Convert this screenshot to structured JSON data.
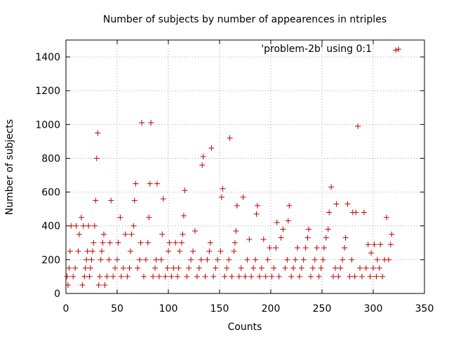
{
  "chart_data": {
    "type": "scatter",
    "title": "Number of subjects by number of appearences in ntriples",
    "xlabel": "Counts",
    "ylabel": "Number of subjects",
    "xlim": [
      0,
      350
    ],
    "ylim": [
      0,
      1500
    ],
    "xticks": [
      0,
      50,
      100,
      150,
      200,
      250,
      300,
      350
    ],
    "yticks": [
      0,
      200,
      400,
      600,
      800,
      1000,
      1200,
      1400
    ],
    "grid": true,
    "legend_position": "top-right",
    "marker_color": "#c00000",
    "series": [
      {
        "name": "'problem-2b' using 0:1",
        "marker": "plus",
        "points": [
          [
            1,
            100
          ],
          [
            2,
            50
          ],
          [
            3,
            150
          ],
          [
            4,
            250
          ],
          [
            5,
            400
          ],
          [
            7,
            100
          ],
          [
            9,
            150
          ],
          [
            10,
            400
          ],
          [
            12,
            250
          ],
          [
            13,
            350
          ],
          [
            15,
            450
          ],
          [
            16,
            50
          ],
          [
            17,
            400
          ],
          [
            18,
            100
          ],
          [
            19,
            150
          ],
          [
            20,
            200
          ],
          [
            21,
            250
          ],
          [
            22,
            400
          ],
          [
            23,
            100
          ],
          [
            24,
            150
          ],
          [
            25,
            200
          ],
          [
            26,
            250
          ],
          [
            27,
            300
          ],
          [
            28,
            400
          ],
          [
            29,
            550
          ],
          [
            30,
            800
          ],
          [
            31,
            950
          ],
          [
            32,
            50
          ],
          [
            33,
            100
          ],
          [
            34,
            200
          ],
          [
            35,
            250
          ],
          [
            36,
            300
          ],
          [
            37,
            350
          ],
          [
            38,
            50
          ],
          [
            40,
            100
          ],
          [
            42,
            200
          ],
          [
            43,
            300
          ],
          [
            44,
            550
          ],
          [
            46,
            100
          ],
          [
            48,
            150
          ],
          [
            50,
            200
          ],
          [
            51,
            300
          ],
          [
            53,
            450
          ],
          [
            54,
            100
          ],
          [
            56,
            150
          ],
          [
            58,
            350
          ],
          [
            60,
            100
          ],
          [
            62,
            150
          ],
          [
            63,
            250
          ],
          [
            64,
            350
          ],
          [
            66,
            400
          ],
          [
            67,
            550
          ],
          [
            68,
            650
          ],
          [
            70,
            150
          ],
          [
            72,
            200
          ],
          [
            73,
            300
          ],
          [
            74,
            1010
          ],
          [
            76,
            100
          ],
          [
            78,
            200
          ],
          [
            80,
            300
          ],
          [
            81,
            450
          ],
          [
            82,
            650
          ],
          [
            83,
            1010
          ],
          [
            85,
            100
          ],
          [
            87,
            150
          ],
          [
            88,
            200
          ],
          [
            89,
            650
          ],
          [
            91,
            100
          ],
          [
            93,
            200
          ],
          [
            94,
            350
          ],
          [
            95,
            560
          ],
          [
            97,
            100
          ],
          [
            99,
            150
          ],
          [
            100,
            250
          ],
          [
            101,
            300
          ],
          [
            103,
            100
          ],
          [
            105,
            150
          ],
          [
            107,
            300
          ],
          [
            109,
            100
          ],
          [
            110,
            150
          ],
          [
            111,
            250
          ],
          [
            113,
            300
          ],
          [
            114,
            350
          ],
          [
            115,
            460
          ],
          [
            116,
            610
          ],
          [
            118,
            100
          ],
          [
            120,
            150
          ],
          [
            122,
            200
          ],
          [
            124,
            250
          ],
          [
            126,
            370
          ],
          [
            128,
            100
          ],
          [
            130,
            150
          ],
          [
            132,
            200
          ],
          [
            133,
            760
          ],
          [
            134,
            810
          ],
          [
            136,
            100
          ],
          [
            138,
            200
          ],
          [
            140,
            250
          ],
          [
            141,
            300
          ],
          [
            142,
            860
          ],
          [
            144,
            100
          ],
          [
            146,
            150
          ],
          [
            148,
            200
          ],
          [
            151,
            250
          ],
          [
            152,
            570
          ],
          [
            153,
            620
          ],
          [
            155,
            100
          ],
          [
            157,
            150
          ],
          [
            159,
            200
          ],
          [
            160,
            920
          ],
          [
            162,
            100
          ],
          [
            164,
            250
          ],
          [
            165,
            300
          ],
          [
            166,
            370
          ],
          [
            167,
            520
          ],
          [
            169,
            100
          ],
          [
            171,
            150
          ],
          [
            173,
            570
          ],
          [
            175,
            100
          ],
          [
            177,
            200
          ],
          [
            179,
            320
          ],
          [
            181,
            100
          ],
          [
            183,
            150
          ],
          [
            185,
            200
          ],
          [
            186,
            470
          ],
          [
            187,
            520
          ],
          [
            189,
            100
          ],
          [
            191,
            150
          ],
          [
            193,
            320
          ],
          [
            195,
            100
          ],
          [
            197,
            200
          ],
          [
            199,
            270
          ],
          [
            201,
            100
          ],
          [
            203,
            150
          ],
          [
            205,
            270
          ],
          [
            206,
            420
          ],
          [
            208,
            100
          ],
          [
            210,
            330
          ],
          [
            212,
            380
          ],
          [
            214,
            150
          ],
          [
            216,
            200
          ],
          [
            217,
            430
          ],
          [
            218,
            520
          ],
          [
            220,
            100
          ],
          [
            222,
            150
          ],
          [
            224,
            200
          ],
          [
            226,
            270
          ],
          [
            228,
            100
          ],
          [
            230,
            150
          ],
          [
            232,
            200
          ],
          [
            234,
            270
          ],
          [
            236,
            330
          ],
          [
            237,
            380
          ],
          [
            239,
            100
          ],
          [
            241,
            150
          ],
          [
            243,
            200
          ],
          [
            245,
            270
          ],
          [
            247,
            100
          ],
          [
            249,
            150
          ],
          [
            251,
            200
          ],
          [
            252,
            270
          ],
          [
            254,
            330
          ],
          [
            256,
            380
          ],
          [
            257,
            480
          ],
          [
            259,
            630
          ],
          [
            261,
            100
          ],
          [
            263,
            150
          ],
          [
            264,
            530
          ],
          [
            266,
            100
          ],
          [
            268,
            150
          ],
          [
            270,
            200
          ],
          [
            272,
            270
          ],
          [
            273,
            330
          ],
          [
            275,
            530
          ],
          [
            277,
            100
          ],
          [
            279,
            200
          ],
          [
            280,
            480
          ],
          [
            282,
            100
          ],
          [
            283,
            480
          ],
          [
            285,
            990
          ],
          [
            287,
            150
          ],
          [
            289,
            100
          ],
          [
            291,
            480
          ],
          [
            293,
            150
          ],
          [
            295,
            290
          ],
          [
            297,
            100
          ],
          [
            298,
            240
          ],
          [
            300,
            150
          ],
          [
            301,
            290
          ],
          [
            303,
            100
          ],
          [
            304,
            200
          ],
          [
            306,
            150
          ],
          [
            307,
            290
          ],
          [
            309,
            100
          ],
          [
            311,
            200
          ],
          [
            313,
            450
          ],
          [
            315,
            200
          ],
          [
            317,
            290
          ],
          [
            318,
            350
          ],
          [
            322,
            1440
          ]
        ]
      }
    ]
  }
}
